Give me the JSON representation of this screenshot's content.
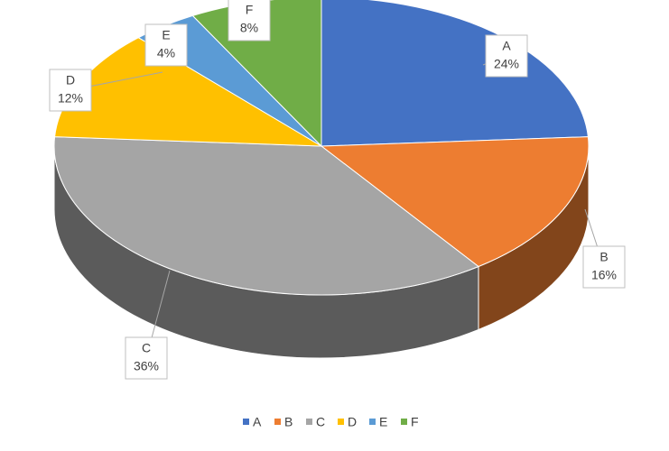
{
  "chart_data": {
    "type": "pie",
    "categories": [
      "A",
      "B",
      "C",
      "D",
      "E",
      "F"
    ],
    "values": [
      24,
      16,
      36,
      12,
      4,
      8
    ],
    "value_labels": [
      "24%",
      "16%",
      "36%",
      "12%",
      "4%",
      "8%"
    ],
    "colors": [
      "#4472c4",
      "#ed7d31",
      "#a5a5a5",
      "#ffc000",
      "#5b9bd5",
      "#70ad47"
    ],
    "legend": "bottom"
  }
}
